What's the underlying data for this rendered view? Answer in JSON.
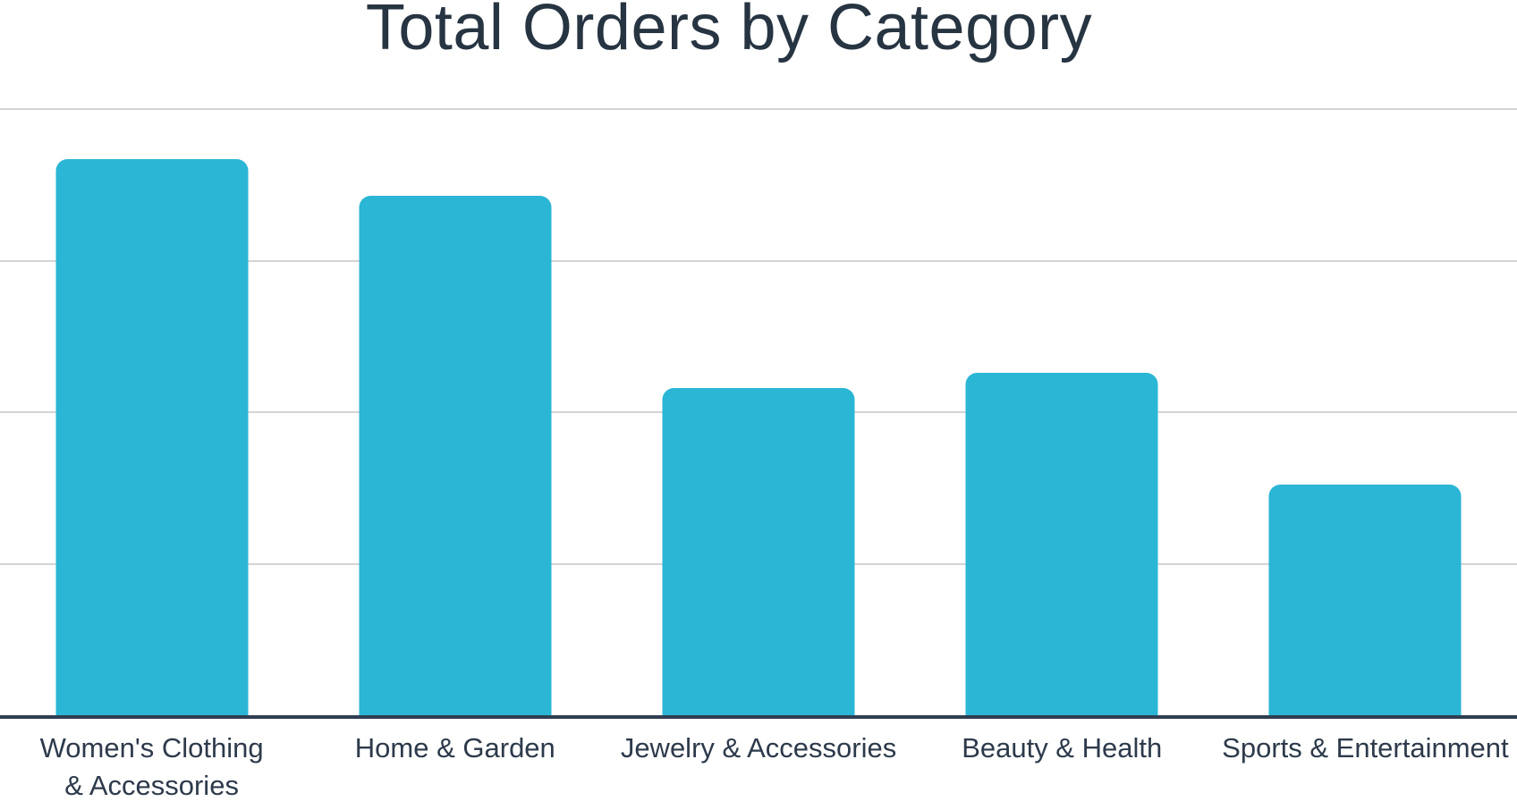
{
  "chart_data": {
    "type": "bar",
    "title": "Total Orders by Category",
    "categories": [
      "Women's Clothing & Accessories",
      "Home & Garden",
      "Jewelry & Accessories",
      "Beauty & Health",
      "Sports & Entertainment"
    ],
    "category_label_lines": [
      [
        "Women's Clothing",
        "& Accessories"
      ],
      [
        "Home & Garden"
      ],
      [
        "Jewelry & Accessories"
      ],
      [
        "Beauty & Health"
      ],
      [
        "Sports & Entertainment"
      ]
    ],
    "values": [
      3.67,
      3.43,
      2.16,
      2.26,
      1.52
    ],
    "value_unit": "gridline steps (y-axis has no visible tick labels; 1.0 = one gridline interval above the baseline)",
    "gridlines_y": [
      1,
      2,
      3,
      4
    ],
    "ylim": [
      0,
      4.19
    ],
    "xlabel": "",
    "ylabel": "",
    "grid": true,
    "legend": false
  },
  "style": {
    "bar_color": "#2ab6d4",
    "title_color": "#273442",
    "label_color": "#2d3a4b",
    "axis_color": "#2f3e50",
    "gridline_color": "#d4d4d4",
    "background_color": "#ffffff"
  }
}
